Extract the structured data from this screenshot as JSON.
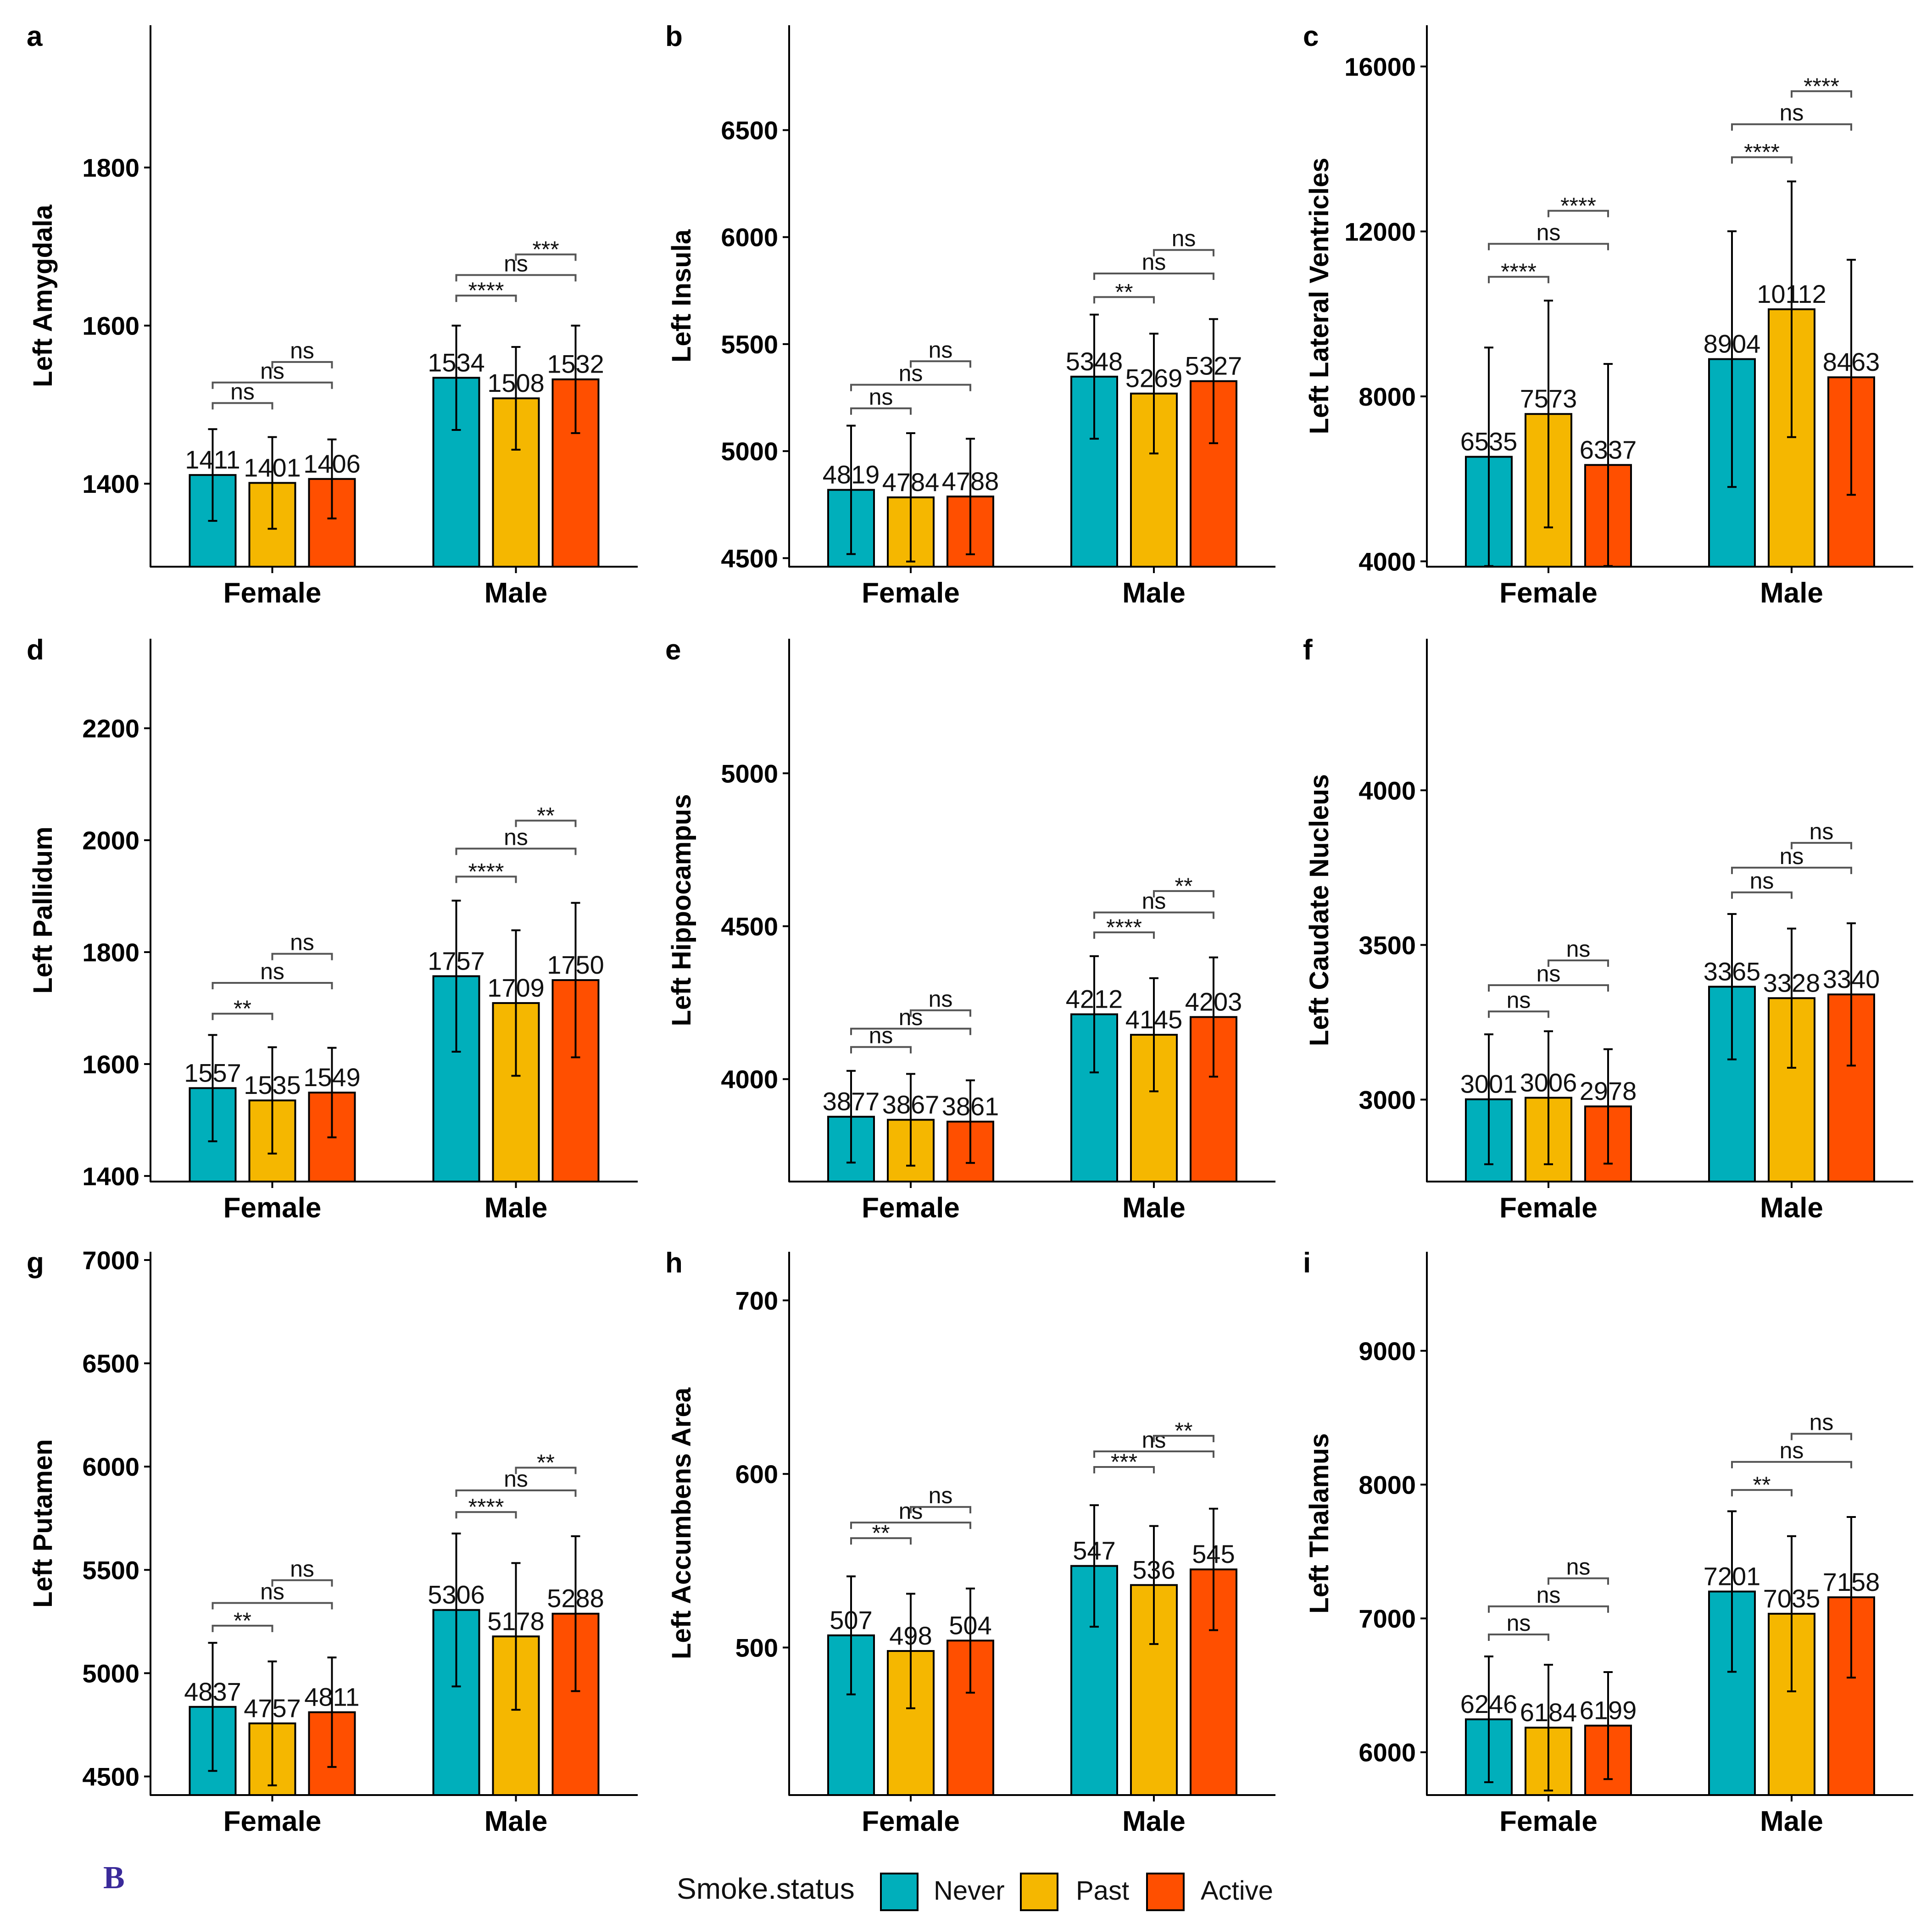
{
  "figure_label": "B",
  "colors": {
    "Never": "#00afbb",
    "Past": "#f5b700",
    "Active": "#ff4f00"
  },
  "legend": {
    "title": "Smoke.status",
    "items": [
      "Never",
      "Past",
      "Active"
    ]
  },
  "chart_data": [
    {
      "panel": "a",
      "type": "bar",
      "ylabel": "Left Amygdala",
      "categories": [
        "Female",
        "Male"
      ],
      "ylim": [
        1295,
        1980
      ],
      "yticks": [
        1400,
        1600,
        1800
      ],
      "series": [
        {
          "name": "Never",
          "values": [
            1411,
            1534
          ],
          "labels": [
            "1411",
            "1534"
          ],
          "err": [
            58,
            66
          ]
        },
        {
          "name": "Past",
          "values": [
            1401,
            1508
          ],
          "labels": [
            "1401",
            "1508"
          ],
          "err": [
            58,
            65
          ]
        },
        {
          "name": "Active",
          "values": [
            1406,
            1532
          ],
          "labels": [
            "1406",
            "1532"
          ],
          "err": [
            50,
            68
          ]
        }
      ],
      "annotations": [
        {
          "group": 0,
          "from": 0,
          "to": 1,
          "label": "ns",
          "y": 1502
        },
        {
          "group": 0,
          "from": 0,
          "to": 2,
          "label": "ns",
          "y": 1528
        },
        {
          "group": 0,
          "from": 1,
          "to": 2,
          "label": "ns",
          "y": 1554
        },
        {
          "group": 1,
          "from": 0,
          "to": 1,
          "label": "****",
          "y": 1638
        },
        {
          "group": 1,
          "from": 0,
          "to": 2,
          "label": "ns",
          "y": 1664
        },
        {
          "group": 1,
          "from": 1,
          "to": 2,
          "label": "***",
          "y": 1690
        }
      ]
    },
    {
      "panel": "b",
      "type": "bar",
      "ylabel": "Left Insula",
      "categories": [
        "Female",
        "Male"
      ],
      "ylim": [
        4460,
        6990
      ],
      "yticks": [
        4500,
        5000,
        5500,
        6000,
        6500
      ],
      "series": [
        {
          "name": "Never",
          "values": [
            4819,
            5348
          ],
          "labels": [
            "4819",
            "5348"
          ],
          "err": [
            300,
            290
          ]
        },
        {
          "name": "Past",
          "values": [
            4784,
            5269
          ],
          "labels": [
            "4784",
            "5269"
          ],
          "err": [
            300,
            280
          ]
        },
        {
          "name": "Active",
          "values": [
            4788,
            5327
          ],
          "labels": [
            "4788",
            "5327"
          ],
          "err": [
            270,
            290
          ]
        }
      ],
      "annotations": [
        {
          "group": 0,
          "from": 0,
          "to": 1,
          "label": "ns",
          "y": 5200
        },
        {
          "group": 0,
          "from": 0,
          "to": 2,
          "label": "ns",
          "y": 5310
        },
        {
          "group": 0,
          "from": 1,
          "to": 2,
          "label": "ns",
          "y": 5420
        },
        {
          "group": 1,
          "from": 0,
          "to": 1,
          "label": "**",
          "y": 5720
        },
        {
          "group": 1,
          "from": 0,
          "to": 2,
          "label": "ns",
          "y": 5830
        },
        {
          "group": 1,
          "from": 1,
          "to": 2,
          "label": "ns",
          "y": 5940
        }
      ]
    },
    {
      "panel": "c",
      "type": "bar",
      "ylabel": "Left Lateral Ventricles",
      "categories": [
        "Female",
        "Male"
      ],
      "ylim": [
        3870,
        17000
      ],
      "yticks": [
        4000,
        8000,
        12000,
        16000
      ],
      "series": [
        {
          "name": "Never",
          "values": [
            6535,
            8904
          ],
          "labels": [
            "6535",
            "8904"
          ],
          "err": [
            2650,
            3100
          ]
        },
        {
          "name": "Past",
          "values": [
            7573,
            10112
          ],
          "labels": [
            "7573",
            "10112"
          ],
          "err": [
            2750,
            3100
          ]
        },
        {
          "name": "Active",
          "values": [
            6337,
            8463
          ],
          "labels": [
            "6337",
            "8463"
          ],
          "err": [
            2450,
            2850
          ]
        }
      ],
      "annotations": [
        {
          "group": 0,
          "from": 0,
          "to": 1,
          "label": "****",
          "y": 10900
        },
        {
          "group": 0,
          "from": 0,
          "to": 2,
          "label": "ns",
          "y": 11700
        },
        {
          "group": 0,
          "from": 1,
          "to": 2,
          "label": "****",
          "y": 12500
        },
        {
          "group": 1,
          "from": 0,
          "to": 1,
          "label": "****",
          "y": 13800
        },
        {
          "group": 1,
          "from": 0,
          "to": 2,
          "label": "ns",
          "y": 14600
        },
        {
          "group": 1,
          "from": 1,
          "to": 2,
          "label": "****",
          "y": 15400
        }
      ]
    },
    {
      "panel": "d",
      "type": "bar",
      "ylabel": "Left Pallidum",
      "categories": [
        "Female",
        "Male"
      ],
      "ylim": [
        1390,
        2360
      ],
      "yticks": [
        1400,
        1600,
        1800,
        2000,
        2200
      ],
      "series": [
        {
          "name": "Never",
          "values": [
            1557,
            1757
          ],
          "labels": [
            "1557",
            "1757"
          ],
          "err": [
            95,
            135
          ]
        },
        {
          "name": "Past",
          "values": [
            1535,
            1709
          ],
          "labels": [
            "1535",
            "1709"
          ],
          "err": [
            95,
            130
          ]
        },
        {
          "name": "Active",
          "values": [
            1549,
            1750
          ],
          "labels": [
            "1549",
            "1750"
          ],
          "err": [
            80,
            138
          ]
        }
      ],
      "annotations": [
        {
          "group": 0,
          "from": 0,
          "to": 1,
          "label": "**",
          "y": 1690
        },
        {
          "group": 0,
          "from": 0,
          "to": 2,
          "label": "ns",
          "y": 1745
        },
        {
          "group": 0,
          "from": 1,
          "to": 2,
          "label": "ns",
          "y": 1797
        },
        {
          "group": 1,
          "from": 0,
          "to": 1,
          "label": "****",
          "y": 1935
        },
        {
          "group": 1,
          "from": 0,
          "to": 2,
          "label": "ns",
          "y": 1985
        },
        {
          "group": 1,
          "from": 1,
          "to": 2,
          "label": "**",
          "y": 2035
        }
      ]
    },
    {
      "panel": "e",
      "type": "bar",
      "ylabel": "Left Hippocampus",
      "categories": [
        "Female",
        "Male"
      ],
      "ylim": [
        3665,
        5440
      ],
      "yticks": [
        4000,
        4500,
        5000
      ],
      "series": [
        {
          "name": "Never",
          "values": [
            3877,
            4212
          ],
          "labels": [
            "3877",
            "4212"
          ],
          "err": [
            150,
            190
          ]
        },
        {
          "name": "Past",
          "values": [
            3867,
            4145
          ],
          "labels": [
            "3867",
            "4145"
          ],
          "err": [
            150,
            185
          ]
        },
        {
          "name": "Active",
          "values": [
            3861,
            4203
          ],
          "labels": [
            "3861",
            "4203"
          ],
          "err": [
            135,
            195
          ]
        }
      ],
      "annotations": [
        {
          "group": 0,
          "from": 0,
          "to": 1,
          "label": "ns",
          "y": 4105
        },
        {
          "group": 0,
          "from": 0,
          "to": 2,
          "label": "ns",
          "y": 4165
        },
        {
          "group": 0,
          "from": 1,
          "to": 2,
          "label": "ns",
          "y": 4225
        },
        {
          "group": 1,
          "from": 0,
          "to": 1,
          "label": "****",
          "y": 4480
        },
        {
          "group": 1,
          "from": 0,
          "to": 2,
          "label": "ns",
          "y": 4545
        },
        {
          "group": 1,
          "from": 1,
          "to": 2,
          "label": "**",
          "y": 4615
        }
      ]
    },
    {
      "panel": "f",
      "type": "bar",
      "ylabel": "Left Caudate Nucleus",
      "categories": [
        "Female",
        "Male"
      ],
      "ylim": [
        2735,
        4490
      ],
      "yticks": [
        3000,
        3500,
        4000
      ],
      "series": [
        {
          "name": "Never",
          "values": [
            3001,
            3365
          ],
          "labels": [
            "3001",
            "3365"
          ],
          "err": [
            210,
            235
          ]
        },
        {
          "name": "Past",
          "values": [
            3006,
            3328
          ],
          "labels": [
            "3006",
            "3328"
          ],
          "err": [
            215,
            225
          ]
        },
        {
          "name": "Active",
          "values": [
            2978,
            3340
          ],
          "labels": [
            "2978",
            "3340"
          ],
          "err": [
            185,
            230
          ]
        }
      ],
      "annotations": [
        {
          "group": 0,
          "from": 0,
          "to": 1,
          "label": "ns",
          "y": 3285
        },
        {
          "group": 0,
          "from": 0,
          "to": 2,
          "label": "ns",
          "y": 3370
        },
        {
          "group": 0,
          "from": 1,
          "to": 2,
          "label": "ns",
          "y": 3450
        },
        {
          "group": 1,
          "from": 0,
          "to": 1,
          "label": "ns",
          "y": 3670
        },
        {
          "group": 1,
          "from": 0,
          "to": 2,
          "label": "ns",
          "y": 3750
        },
        {
          "group": 1,
          "from": 1,
          "to": 2,
          "label": "ns",
          "y": 3830
        }
      ]
    },
    {
      "panel": "g",
      "type": "bar",
      "ylabel": "Left Putamen",
      "categories": [
        "Female",
        "Male"
      ],
      "ylim": [
        4410,
        7040
      ],
      "yticks": [
        4500,
        5000,
        5500,
        6000,
        6500,
        7000
      ],
      "series": [
        {
          "name": "Never",
          "values": [
            4837,
            5306
          ],
          "labels": [
            "4837",
            "5306"
          ],
          "err": [
            310,
            370
          ]
        },
        {
          "name": "Past",
          "values": [
            4757,
            5178
          ],
          "labels": [
            "4757",
            "5178"
          ],
          "err": [
            300,
            355
          ]
        },
        {
          "name": "Active",
          "values": [
            4811,
            5288
          ],
          "labels": [
            "4811",
            "5288"
          ],
          "err": [
            265,
            375
          ]
        }
      ],
      "annotations": [
        {
          "group": 0,
          "from": 0,
          "to": 1,
          "label": "**",
          "y": 5230
        },
        {
          "group": 0,
          "from": 0,
          "to": 2,
          "label": "ns",
          "y": 5340
        },
        {
          "group": 0,
          "from": 1,
          "to": 2,
          "label": "ns",
          "y": 5450
        },
        {
          "group": 1,
          "from": 0,
          "to": 1,
          "label": "****",
          "y": 5780
        },
        {
          "group": 1,
          "from": 0,
          "to": 2,
          "label": "ns",
          "y": 5885
        },
        {
          "group": 1,
          "from": 1,
          "to": 2,
          "label": "**",
          "y": 5995
        }
      ]
    },
    {
      "panel": "h",
      "type": "bar",
      "ylabel": "Left Accumbens Area",
      "categories": [
        "Female",
        "Male"
      ],
      "ylim": [
        415,
        728
      ],
      "yticks": [
        500,
        600,
        700
      ],
      "series": [
        {
          "name": "Never",
          "values": [
            507,
            547
          ],
          "labels": [
            "507",
            "547"
          ],
          "err": [
            34,
            35
          ]
        },
        {
          "name": "Past",
          "values": [
            498,
            536
          ],
          "labels": [
            "498",
            "536"
          ],
          "err": [
            33,
            34
          ]
        },
        {
          "name": "Active",
          "values": [
            504,
            545
          ],
          "labels": [
            "504",
            "545"
          ],
          "err": [
            30,
            35
          ]
        }
      ],
      "annotations": [
        {
          "group": 0,
          "from": 0,
          "to": 1,
          "label": "**",
          "y": 563
        },
        {
          "group": 0,
          "from": 0,
          "to": 2,
          "label": "ns",
          "y": 572
        },
        {
          "group": 0,
          "from": 1,
          "to": 2,
          "label": "ns",
          "y": 581
        },
        {
          "group": 1,
          "from": 0,
          "to": 1,
          "label": "***",
          "y": 604
        },
        {
          "group": 1,
          "from": 0,
          "to": 2,
          "label": "ns",
          "y": 613
        },
        {
          "group": 1,
          "from": 1,
          "to": 2,
          "label": "**",
          "y": 622
        }
      ]
    },
    {
      "panel": "i",
      "type": "bar",
      "ylabel": "Left Thalamus",
      "categories": [
        "Female",
        "Male"
      ],
      "ylim": [
        5680,
        9740
      ],
      "yticks": [
        6000,
        7000,
        8000,
        9000
      ],
      "series": [
        {
          "name": "Never",
          "values": [
            6246,
            7201
          ],
          "labels": [
            "6246",
            "7201"
          ],
          "err": [
            470,
            600
          ]
        },
        {
          "name": "Past",
          "values": [
            6184,
            7035
          ],
          "labels": [
            "6184",
            "7035"
          ],
          "err": [
            470,
            580
          ]
        },
        {
          "name": "Active",
          "values": [
            6199,
            7158
          ],
          "labels": [
            "6199",
            "7158"
          ],
          "err": [
            400,
            600
          ]
        }
      ],
      "annotations": [
        {
          "group": 0,
          "from": 0,
          "to": 1,
          "label": "ns",
          "y": 6880
        },
        {
          "group": 0,
          "from": 0,
          "to": 2,
          "label": "ns",
          "y": 7090
        },
        {
          "group": 0,
          "from": 1,
          "to": 2,
          "label": "ns",
          "y": 7300
        },
        {
          "group": 1,
          "from": 0,
          "to": 1,
          "label": "**",
          "y": 7960
        },
        {
          "group": 1,
          "from": 0,
          "to": 2,
          "label": "ns",
          "y": 8170
        },
        {
          "group": 1,
          "from": 1,
          "to": 2,
          "label": "ns",
          "y": 8380
        }
      ]
    }
  ]
}
